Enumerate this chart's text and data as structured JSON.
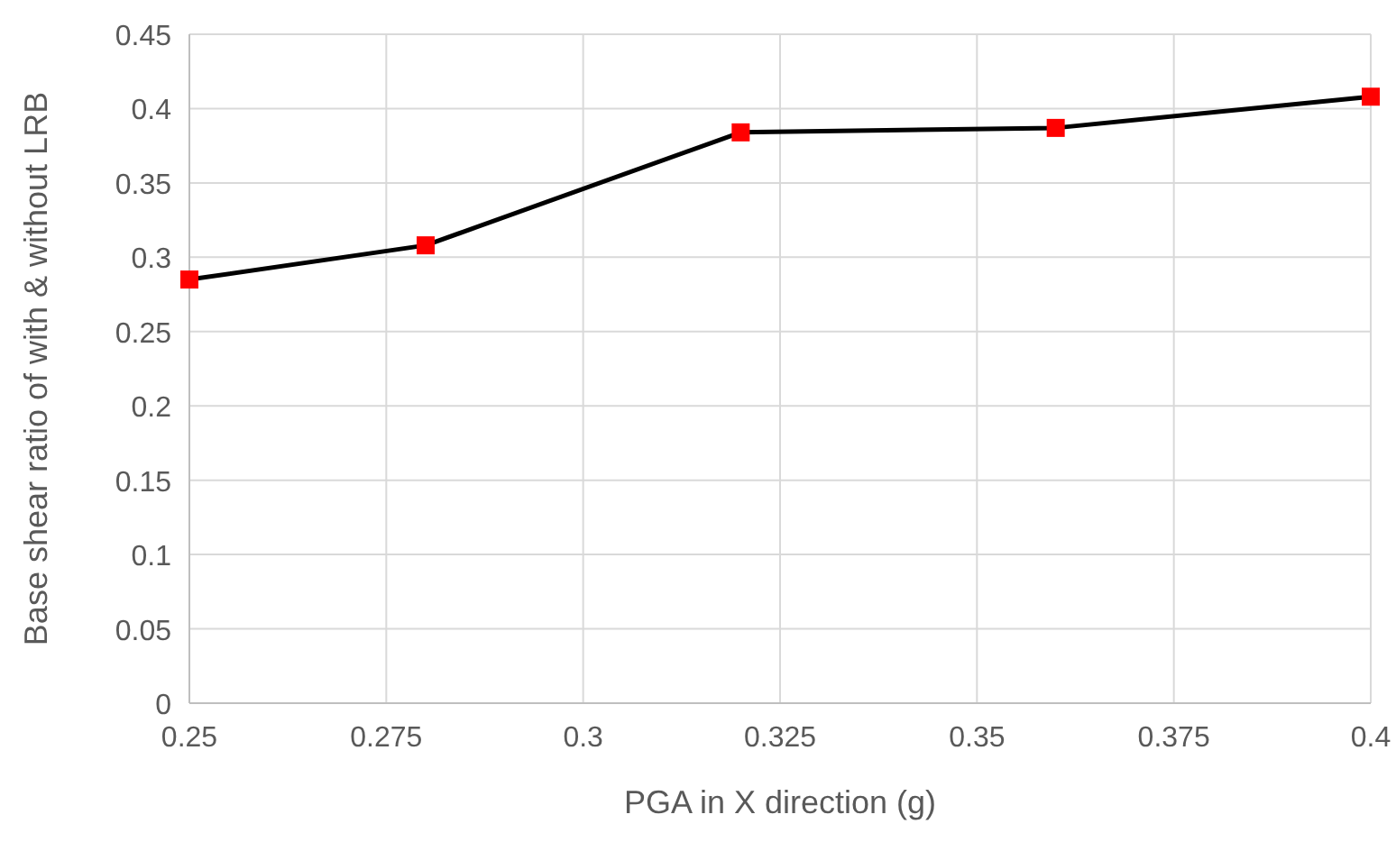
{
  "chart_data": {
    "type": "line",
    "xlabel": "PGA in X direction (g)",
    "ylabel": "Base shear ratio of with & without LRB",
    "x": [
      0.25,
      0.28,
      0.32,
      0.36,
      0.4
    ],
    "series": [
      {
        "color": "#000000",
        "colors": [
          "#ff0000",
          "#ff0000",
          "#ff0000",
          "#ff0000",
          "#ff0000"
        ],
        "values": [
          0.285,
          0.308,
          0.384,
          0.387,
          0.408
        ]
      }
    ],
    "xlim": [
      0.25,
      0.4
    ],
    "xticks": [
      0.25,
      0.275,
      0.3,
      0.325,
      0.35,
      0.375,
      0.4
    ],
    "ylim": [
      0,
      0.45
    ],
    "yticks": [
      0,
      0.05,
      0.1,
      0.15,
      0.2,
      0.25,
      0.3,
      0.35,
      0.4,
      0.45
    ],
    "grid": true,
    "marker": "square",
    "line_style": "solid"
  }
}
